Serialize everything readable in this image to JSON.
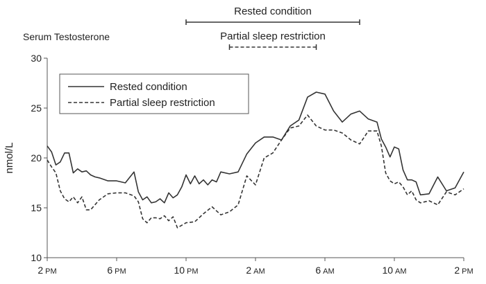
{
  "chart_data": {
    "type": "line",
    "title": "Serum Testosterone",
    "ylabel": "nmol/L",
    "xlabel": "",
    "ylim": [
      10,
      30
    ],
    "xlim": [
      0,
      24
    ],
    "yticks": [
      10,
      15,
      20,
      25,
      30
    ],
    "xticks": [
      {
        "x": 0,
        "hour": "2",
        "ampm": "PM"
      },
      {
        "x": 4,
        "hour": "6",
        "ampm": "PM"
      },
      {
        "x": 8,
        "hour": "10",
        "ampm": "PM"
      },
      {
        "x": 12,
        "hour": "2",
        "ampm": "AM"
      },
      {
        "x": 16,
        "hour": "6",
        "ampm": "AM"
      },
      {
        "x": 20,
        "hour": "10",
        "ampm": "AM"
      },
      {
        "x": 24,
        "hour": "2",
        "ampm": "PM"
      }
    ],
    "legend_placement": "top-left",
    "grid": false,
    "annotations": [
      {
        "label": "Rested condition",
        "x_start": 8,
        "x_end": 18,
        "style": "solid"
      },
      {
        "label": "Partial sleep restriction",
        "x_start": 10.5,
        "x_end": 15.5,
        "style": "dashed"
      }
    ],
    "series": [
      {
        "name": "Rested condition",
        "style": "solid",
        "x": [
          0,
          0.25,
          0.5,
          0.75,
          1.0,
          1.25,
          1.5,
          1.75,
          2.0,
          2.25,
          2.5,
          2.75,
          3.0,
          3.5,
          4.0,
          4.5,
          5.0,
          5.25,
          5.5,
          5.75,
          6.0,
          6.25,
          6.5,
          6.75,
          7.0,
          7.25,
          7.5,
          7.75,
          8.0,
          8.25,
          8.5,
          8.75,
          9.0,
          9.25,
          9.5,
          9.75,
          10.0,
          10.5,
          11.0,
          11.5,
          12.0,
          12.5,
          13.0,
          13.5,
          14.0,
          14.5,
          15.0,
          15.5,
          16.0,
          16.5,
          17.0,
          17.5,
          18.0,
          18.5,
          19.0,
          19.25,
          19.5,
          19.75,
          20.0,
          20.25,
          20.5,
          20.75,
          21.0,
          21.25,
          21.5,
          22.0,
          22.5,
          23.0,
          23.5,
          24.0
        ],
        "y": [
          21.2,
          20.6,
          19.3,
          19.6,
          20.5,
          20.5,
          18.5,
          18.9,
          18.6,
          18.7,
          18.3,
          18.1,
          18.0,
          17.7,
          17.7,
          17.5,
          18.6,
          16.6,
          15.8,
          16.1,
          15.5,
          15.6,
          15.9,
          15.5,
          16.5,
          16.0,
          16.3,
          17.1,
          18.3,
          17.4,
          18.2,
          17.4,
          17.8,
          17.3,
          17.8,
          17.6,
          18.6,
          18.4,
          18.6,
          20.4,
          21.5,
          22.1,
          22.1,
          21.8,
          23.2,
          23.8,
          26.1,
          26.6,
          26.4,
          24.7,
          23.6,
          24.4,
          24.7,
          23.9,
          23.6,
          21.9,
          21.1,
          20.1,
          21.1,
          20.9,
          18.8,
          17.8,
          17.8,
          17.6,
          16.3,
          16.4,
          18.1,
          16.7,
          17.0,
          18.6
        ]
      },
      {
        "name": "Partial sleep restriction",
        "style": "dashed",
        "x": [
          0,
          0.25,
          0.5,
          0.75,
          1.0,
          1.25,
          1.5,
          1.75,
          2.0,
          2.25,
          2.5,
          3.0,
          3.5,
          4.0,
          4.5,
          5.0,
          5.25,
          5.5,
          5.75,
          6.0,
          6.25,
          6.5,
          6.75,
          7.0,
          7.25,
          7.5,
          8.0,
          8.5,
          9.0,
          9.5,
          10.0,
          10.5,
          11.0,
          11.5,
          12.0,
          12.5,
          13.0,
          13.5,
          14.0,
          14.5,
          15.0,
          15.5,
          16.0,
          16.5,
          17.0,
          17.5,
          18.0,
          18.5,
          19.0,
          19.25,
          19.5,
          19.75,
          20.0,
          20.25,
          20.5,
          20.75,
          21.0,
          21.25,
          21.5,
          22.0,
          22.5,
          23.0,
          23.5,
          24.0
        ],
        "y": [
          19.8,
          19.1,
          18.5,
          16.7,
          15.9,
          15.6,
          16.1,
          15.5,
          16.1,
          14.8,
          14.8,
          15.8,
          16.4,
          16.5,
          16.5,
          16.2,
          15.6,
          13.9,
          13.5,
          14.0,
          14.0,
          13.9,
          14.2,
          13.7,
          14.1,
          13.0,
          13.5,
          13.6,
          14.4,
          15.1,
          14.3,
          14.6,
          15.3,
          18.2,
          17.3,
          20.0,
          20.5,
          21.8,
          23.0,
          23.2,
          24.3,
          23.2,
          22.8,
          22.8,
          22.5,
          21.8,
          21.4,
          22.7,
          22.7,
          21.2,
          18.5,
          17.7,
          17.4,
          17.6,
          17.1,
          16.3,
          16.7,
          15.8,
          15.5,
          15.7,
          15.3,
          16.6,
          16.3,
          16.9
        ]
      }
    ]
  }
}
